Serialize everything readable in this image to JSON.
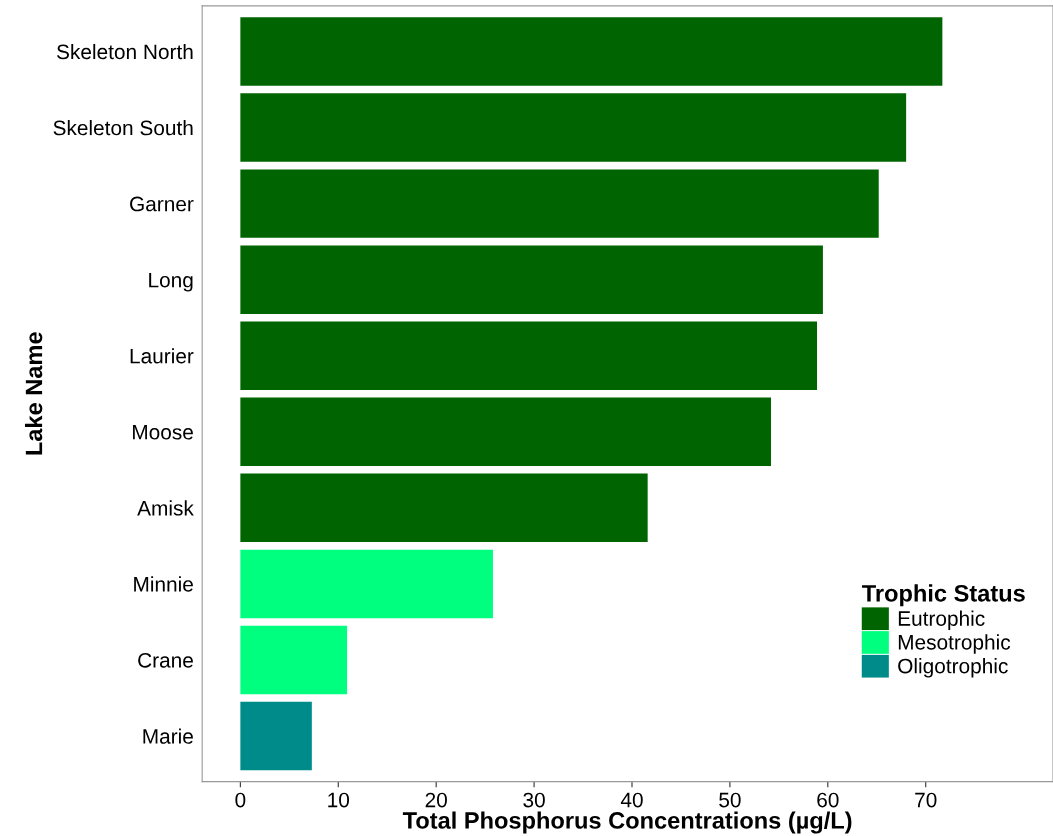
{
  "chart_data": {
    "type": "bar",
    "orientation": "horizontal",
    "xlabel": "Total Phosphorus Concentrations (µg/L)",
    "ylabel": "Lake Name",
    "legend_title": "Trophic Status",
    "categories": [
      "Skeleton North",
      "Skeleton South",
      "Garner",
      "Long",
      "Laurier",
      "Moose",
      "Amisk",
      "Minnie",
      "Crane",
      "Marie"
    ],
    "series": [
      {
        "name": "Eutrophic",
        "color": "#006400",
        "values": [
          71.7,
          68.0,
          65.2,
          59.5,
          58.9,
          54.2,
          41.6,
          null,
          null,
          null
        ]
      },
      {
        "name": "Mesotrophic",
        "color": "#00ff7f",
        "values": [
          null,
          null,
          null,
          null,
          null,
          null,
          null,
          25.8,
          10.9,
          null
        ]
      },
      {
        "name": "Oligotrophic",
        "color": "#008b8b",
        "values": [
          null,
          null,
          null,
          null,
          null,
          null,
          null,
          null,
          null,
          7.3
        ]
      }
    ],
    "xlim": [
      -3.9,
      83
    ],
    "xticks": [
      0,
      10,
      20,
      30,
      40,
      50,
      60,
      70
    ],
    "grid": false,
    "legend": "bottom right"
  }
}
